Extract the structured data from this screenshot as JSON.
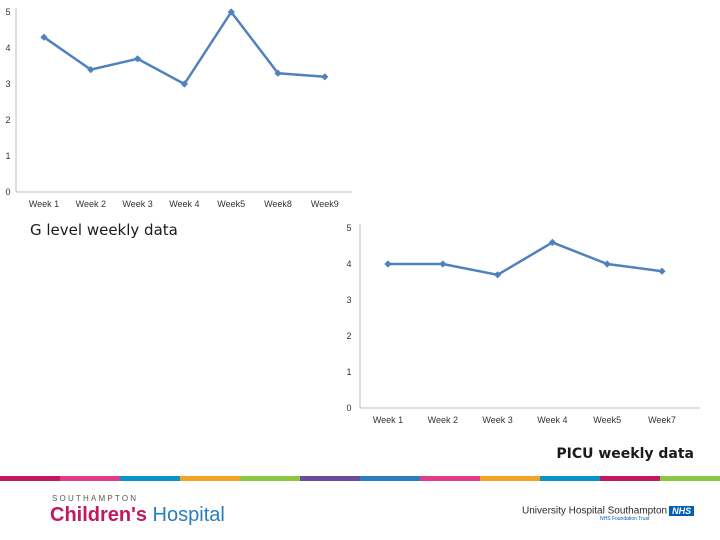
{
  "chart_data": [
    {
      "type": "line",
      "title": "G level weekly data",
      "categories": [
        "Week 1",
        "Week 2",
        "Week 3",
        "Week 4",
        "Week5",
        "Week8",
        "Week9"
      ],
      "values": [
        4.3,
        3.4,
        3.7,
        3.0,
        5.0,
        3.3,
        3.2
      ],
      "ylim": [
        0,
        5
      ],
      "yticks": [
        "0",
        "1",
        "2",
        "3",
        "4",
        "5"
      ],
      "xlabel": "",
      "ylabel": "",
      "grid": false,
      "legend": "none",
      "color": "#4f81bd"
    },
    {
      "type": "line",
      "title": "PICU weekly data",
      "categories": [
        "Week 1",
        "Week 2",
        "Week 3",
        "Week 4",
        "Week5",
        "Week7"
      ],
      "values": [
        4.0,
        4.0,
        3.7,
        4.6,
        4.0,
        3.8
      ],
      "ylim": [
        0,
        5
      ],
      "yticks": [
        "0",
        "1",
        "2",
        "3",
        "4",
        "5"
      ],
      "xlabel": "",
      "ylabel": "",
      "grid": false,
      "legend": "none",
      "color": "#4f81bd"
    }
  ],
  "footer": {
    "colors": [
      "#c3185f",
      "#e23d8c",
      "#0a94c8",
      "#f3a325",
      "#8dc63f",
      "#6c4a9c",
      "#2a7dbf",
      "#e23d8c",
      "#f3a325",
      "#0a94c8",
      "#c3185f",
      "#8dc63f"
    ],
    "left_logo": {
      "small": "SOUTHAMPTON",
      "main_bold": "Children's",
      "main_rest": " Hospital"
    },
    "right_logo": {
      "name": "University Hospital Southampton",
      "badge": "NHS",
      "trust": "NHS Foundation Trust"
    }
  }
}
